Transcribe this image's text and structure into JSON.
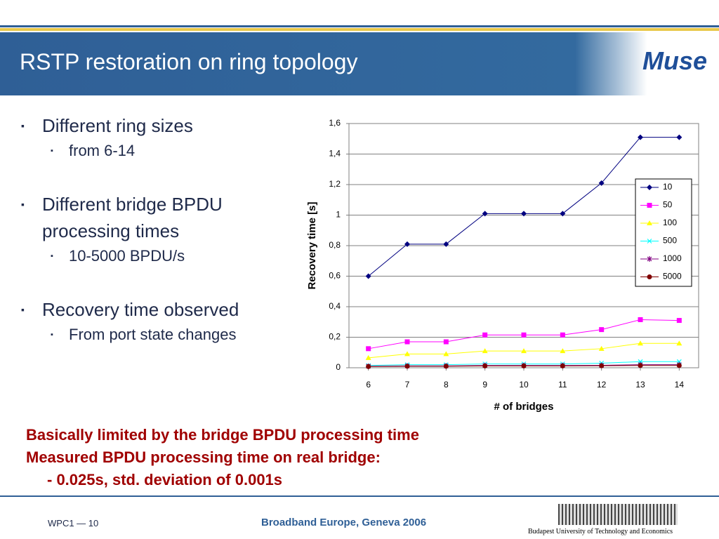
{
  "title": "RSTP restoration on ring topology",
  "logo": "Muse",
  "bullets": [
    {
      "text": "Different ring sizes",
      "sub": [
        "from 6-14"
      ]
    },
    {
      "text": "Different bridge BPDU processing times",
      "sub": [
        "10-5000 BPDU/s"
      ]
    },
    {
      "text": "Recovery time observed",
      "sub": [
        "From port state changes"
      ]
    }
  ],
  "notes": [
    "Basically limited by the bridge BPDU processing time",
    "Measured BPDU processing time on real bridge:",
    "- 0.025s,  std. deviation of 0.001s"
  ],
  "footer": {
    "left": "WPC1 — 10",
    "center": "Broadband Europe, Geneva 2006",
    "right": "Budapest University of Technology and Economics"
  },
  "chart_data": {
    "type": "line",
    "y_label": "Recovery time [s]",
    "x_label": "# of bridges",
    "x": [
      6,
      7,
      8,
      9,
      10,
      11,
      12,
      13,
      14
    ],
    "xlim": [
      5.5,
      14.5
    ],
    "xticks": [
      6,
      7,
      8,
      9,
      10,
      11,
      12,
      13,
      14
    ],
    "ylim": [
      0,
      1.6
    ],
    "yticks": [
      0,
      {
        "value": 0.2,
        "label": "0,2"
      },
      {
        "value": 0.4,
        "label": "0,4"
      },
      {
        "value": 0.6,
        "label": "0,6"
      },
      {
        "value": 0.8,
        "label": "0,8"
      },
      1,
      {
        "value": 1.2,
        "label": "1,2"
      },
      {
        "value": 1.4,
        "label": "1,4"
      },
      {
        "value": 1.6,
        "label": "1,6"
      }
    ],
    "grid": true,
    "legend": "right",
    "series": [
      {
        "name": "10",
        "color": "#000080",
        "marker": "diamond",
        "values": [
          0.6,
          0.81,
          0.81,
          1.01,
          1.01,
          1.01,
          1.21,
          1.51,
          1.51
        ]
      },
      {
        "name": "50",
        "color": "#ff00ff",
        "marker": "square",
        "values": [
          0.125,
          0.17,
          0.17,
          0.215,
          0.215,
          0.215,
          0.25,
          0.315,
          0.31
        ]
      },
      {
        "name": "100",
        "color": "#ffff00",
        "marker": "triangle",
        "values": [
          0.065,
          0.09,
          0.09,
          0.11,
          0.11,
          0.11,
          0.125,
          0.16,
          0.16
        ]
      },
      {
        "name": "500",
        "color": "#00ffff",
        "marker": "x",
        "values": [
          0.015,
          0.02,
          0.02,
          0.025,
          0.025,
          0.025,
          0.03,
          0.04,
          0.04
        ]
      },
      {
        "name": "1000",
        "color": "#800080",
        "marker": "star",
        "values": [
          0.01,
          0.012,
          0.012,
          0.015,
          0.015,
          0.015,
          0.016,
          0.02,
          0.02
        ]
      },
      {
        "name": "5000",
        "color": "#800000",
        "marker": "circle",
        "values": [
          0.008,
          0.01,
          0.01,
          0.012,
          0.012,
          0.012,
          0.013,
          0.015,
          0.015
        ]
      }
    ]
  }
}
